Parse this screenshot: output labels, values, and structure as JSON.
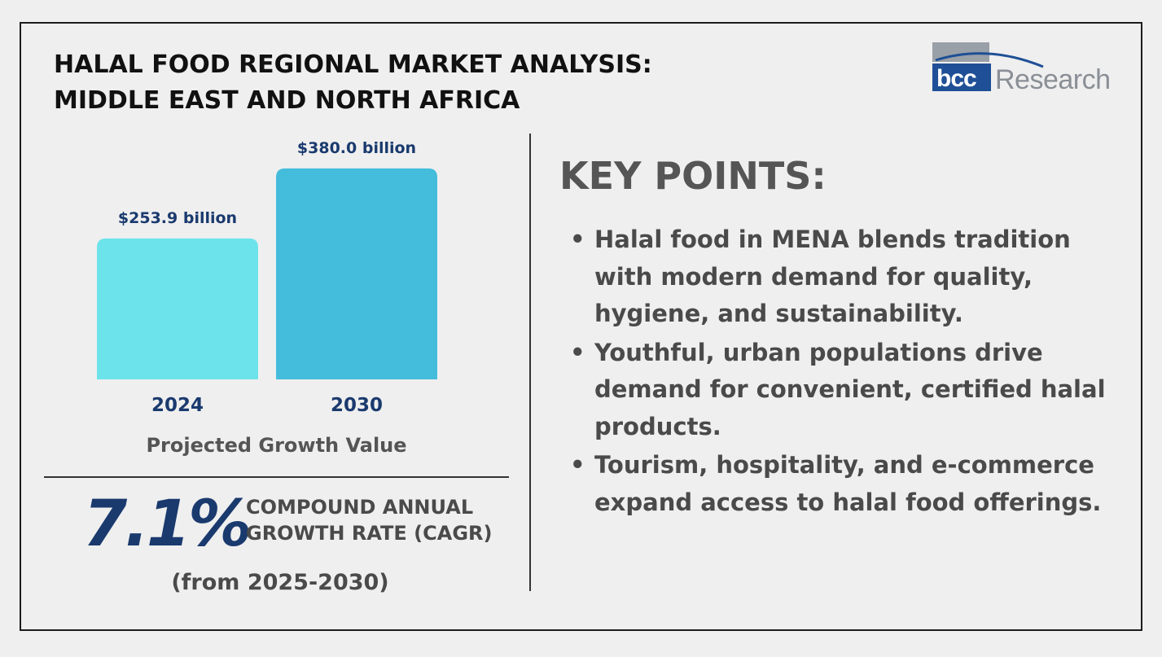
{
  "title": {
    "line1": "HALAL FOOD REGIONAL MARKET ANALYSIS:",
    "line2": "MIDDLE EAST AND NORTH AFRICA"
  },
  "logo": {
    "brand": "bcc",
    "word": "Research"
  },
  "chart_data": {
    "type": "bar",
    "categories": [
      "2024",
      "2030"
    ],
    "values": [
      253.9,
      380.0
    ],
    "data_labels": [
      "$253.9 billion",
      "$380.0 billion"
    ],
    "colors": [
      "#6ce3ea",
      "#44bcdc"
    ],
    "title": "",
    "xlabel": "Projected Growth Value",
    "ylabel": "",
    "ylim": [
      0,
      440
    ],
    "grid": false
  },
  "cagr": {
    "value": "7.1%",
    "label_line1": "COMPOUND ANNUAL",
    "label_line2": "GROWTH RATE (CAGR)",
    "period": "(from 2025-2030)"
  },
  "key_points": {
    "heading": "KEY POINTS:",
    "bullet": "•",
    "items": [
      "Halal food in MENA blends tradition with modern demand for quality, hygiene, and sustainability.",
      "Youthful, urban populations drive demand for convenient, certified halal products.",
      "Tourism, hospitality, and e-commerce expand access to halal food offerings."
    ]
  },
  "colors": {
    "navy": "#1a3a6e",
    "text_gray": "#4a4a4a",
    "background": "#efefef"
  }
}
